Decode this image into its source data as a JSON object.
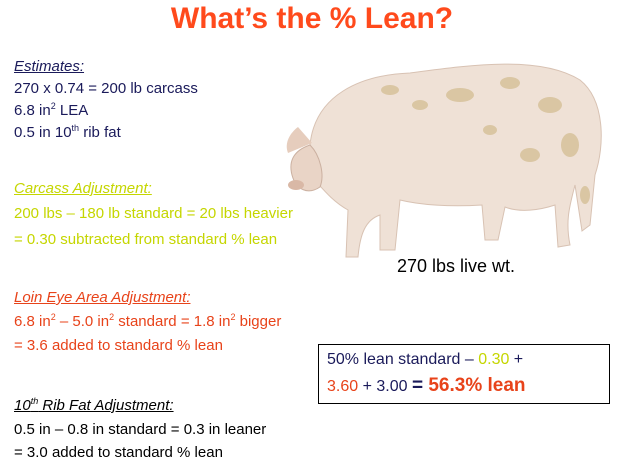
{
  "title": "What’s the % Lean?",
  "estimates": {
    "heading": "Estimates:",
    "lines": [
      [
        "270 x 0.74 = 200 lb carcass"
      ],
      [
        "6.8 in",
        {
          "sup": "2"
        },
        " LEA"
      ],
      [
        "0.5 in 10",
        {
          "sup": "th"
        },
        " rib fat"
      ]
    ]
  },
  "carcass": {
    "heading": "Carcass Adjustment:",
    "lines": [
      [
        "200 lbs – 180 lb standard = 20 lbs heavier"
      ],
      [
        "= 0.30 subtracted from standard % lean"
      ]
    ]
  },
  "loin_eye": {
    "heading": "Loin Eye Area Adjustment:",
    "lines": [
      [
        "6.8 in",
        {
          "sup": "2"
        },
        " – 5.0 in",
        {
          "sup": "2"
        },
        " standard = 1.8 in",
        {
          "sup": "2"
        },
        " bigger"
      ],
      [
        "= 3.6 added to standard % lean"
      ]
    ]
  },
  "rib_fat": {
    "heading": [
      "10",
      {
        "sup": "th"
      },
      " Rib Fat Adjustment:"
    ],
    "lines": [
      [
        "0.5 in – 0.8 in standard = 0.3 in leaner"
      ],
      [
        "= 3.0 added to standard % lean"
      ]
    ]
  },
  "pig_label": "270 lbs live wt.",
  "result_box": {
    "lines": [
      [
        {
          "text": "50% lean standard – ",
          "color": "#1a1a5a"
        },
        {
          "text": "0.30",
          "color": "#c5d600"
        },
        {
          "text": " +",
          "color": "#1a1a5a"
        }
      ],
      [
        {
          "text": "3.60",
          "color": "#e8431a"
        },
        {
          "text": " + 3.00 ",
          "color": "#1a1a5a"
        },
        {
          "text": "= ",
          "color": "#1a1a5a",
          "bold": true
        },
        {
          "text": "56.3% lean",
          "color": "#e8431a",
          "bold": true
        }
      ]
    ]
  }
}
